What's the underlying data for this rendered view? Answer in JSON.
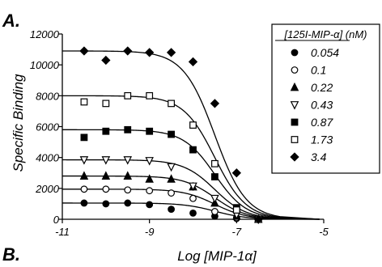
{
  "panel_labels": {
    "a": "A.",
    "b": "B."
  },
  "chart_data": {
    "type": "scatter",
    "title": "",
    "xlabel": "Log [MIP-1α]",
    "ylabel": "Specific Binding",
    "xlim": [
      -11,
      -5
    ],
    "ylim": [
      0,
      12000
    ],
    "x_ticks": [
      -11,
      -9,
      -7,
      -5
    ],
    "x_tick_labels": [
      "-11",
      "-9",
      "-7",
      "-5"
    ],
    "y_ticks": [
      0,
      2000,
      4000,
      6000,
      8000,
      10000,
      12000
    ],
    "y_tick_labels": [
      "0",
      "2000",
      "4000",
      "6000",
      "8000",
      "10000",
      "12000"
    ],
    "grid": false,
    "legend_position": "top-right",
    "legend_title": "[125I-MIP-α] (nM)",
    "ic50_log": -7.5,
    "series": [
      {
        "name": "0.054",
        "marker": "circle-filled",
        "top": 1050,
        "x": [
          -10.5,
          -10.0,
          -9.5,
          -9.0,
          -8.5,
          -8.0,
          -7.5,
          -7.0,
          -6.5
        ],
        "y": [
          1050,
          1000,
          1050,
          950,
          650,
          400,
          200,
          50,
          0
        ]
      },
      {
        "name": "0.1",
        "marker": "circle-open",
        "top": 1950,
        "x": [
          -10.5,
          -10.0,
          -9.5,
          -9.0,
          -8.5,
          -8.0,
          -7.5,
          -7.0,
          -6.5
        ],
        "y": [
          1950,
          1950,
          1900,
          1850,
          1700,
          1350,
          500,
          100,
          0
        ]
      },
      {
        "name": "0.22",
        "marker": "triangle-up-filled",
        "top": 2800,
        "x": [
          -10.5,
          -10.0,
          -9.5,
          -9.0,
          -8.5,
          -8.0,
          -7.5,
          -7.0,
          -6.5
        ],
        "y": [
          2800,
          2800,
          2800,
          2600,
          2600,
          2100,
          1050,
          200,
          0
        ]
      },
      {
        "name": "0.43",
        "marker": "triangle-down-open",
        "top": 3850,
        "x": [
          -10.5,
          -10.0,
          -9.5,
          -9.0,
          -8.5,
          -8.0,
          -7.5,
          -7.0,
          -6.5
        ],
        "y": [
          3850,
          3850,
          3850,
          3800,
          3400,
          2150,
          1350,
          300,
          0
        ]
      },
      {
        "name": "0.87",
        "marker": "square-filled",
        "top": 5800,
        "x": [
          -10.5,
          -10.0,
          -9.5,
          -9.0,
          -8.5,
          -8.0,
          -7.5,
          -7.0,
          -6.5
        ],
        "y": [
          5300,
          5700,
          5800,
          5700,
          5500,
          4500,
          2750,
          750,
          0
        ]
      },
      {
        "name": "1.73",
        "marker": "square-open",
        "top": 8000,
        "x": [
          -10.5,
          -10.0,
          -9.5,
          -9.0,
          -8.5,
          -8.0,
          -7.5,
          -7.0,
          -6.5
        ],
        "y": [
          7600,
          7500,
          8000,
          8000,
          7500,
          6100,
          3600,
          600,
          0
        ]
      },
      {
        "name": "3.4",
        "marker": "diamond-filled",
        "top": 10900,
        "x": [
          -10.5,
          -10.0,
          -9.5,
          -9.0,
          -8.5,
          -8.0,
          -7.5,
          -7.0,
          -6.5
        ],
        "y": [
          10900,
          10300,
          10900,
          10800,
          10800,
          10200,
          7500,
          3000,
          0
        ]
      }
    ]
  }
}
